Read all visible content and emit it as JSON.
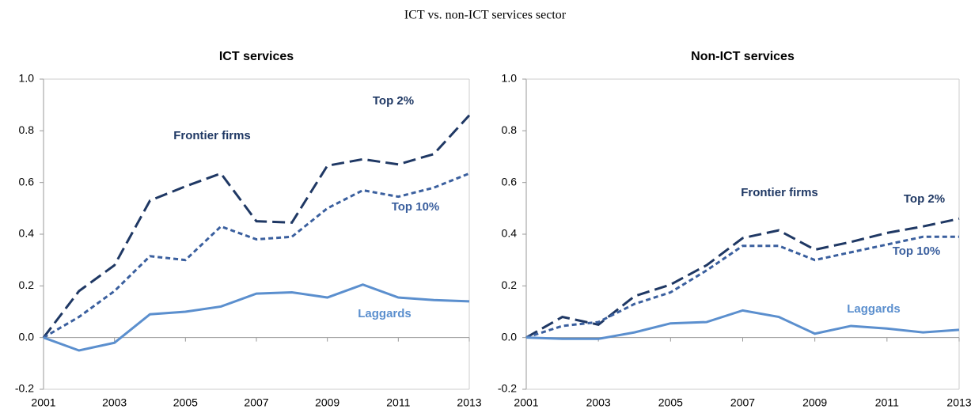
{
  "title": "ICT vs. non-ICT services sector",
  "chart_data": [
    {
      "type": "line",
      "title": "ICT services",
      "x": [
        2001,
        2002,
        2003,
        2004,
        2005,
        2006,
        2007,
        2008,
        2009,
        2010,
        2011,
        2012,
        2013
      ],
      "xlim": [
        2001,
        2013
      ],
      "xticks": [
        2001,
        2003,
        2005,
        2007,
        2009,
        2011,
        2013
      ],
      "ylim": [
        -0.2,
        1.0
      ],
      "yticks": [
        -0.2,
        {
          "value": 0,
          "label": "0.0"
        },
        0.2,
        0.4,
        0.6,
        0.8,
        {
          "value": 1,
          "label": "1.0"
        }
      ],
      "annotations": [
        "Frontier firms"
      ],
      "series": [
        {
          "name": "Top 2%",
          "color": "#1f3864",
          "dash": "long",
          "values": [
            0,
            0.18,
            0.28,
            0.53,
            0.585,
            0.635,
            0.45,
            0.445,
            0.665,
            0.69,
            0.67,
            0.71,
            0.86
          ]
        },
        {
          "name": "Top 10%",
          "color": "#3a5f9e",
          "dash": "short",
          "values": [
            0,
            0.08,
            0.18,
            0.315,
            0.3,
            0.43,
            0.38,
            0.39,
            0.5,
            0.57,
            0.545,
            0.58,
            0.635
          ]
        },
        {
          "name": "Laggards",
          "color": "#5b8fce",
          "dash": "solid",
          "values": [
            0,
            -0.05,
            -0.02,
            0.09,
            0.1,
            0.12,
            0.17,
            0.175,
            0.155,
            0.205,
            0.155,
            0.145,
            0.14
          ]
        }
      ]
    },
    {
      "type": "line",
      "title": "Non-ICT services",
      "x": [
        2001,
        2002,
        2003,
        2004,
        2005,
        2006,
        2007,
        2008,
        2009,
        2010,
        2011,
        2012,
        2013
      ],
      "xlim": [
        2001,
        2013
      ],
      "xticks": [
        2001,
        2003,
        2005,
        2007,
        2009,
        2011,
        2013
      ],
      "ylim": [
        -0.2,
        1.0
      ],
      "yticks": [
        -0.2,
        {
          "value": 0,
          "label": "0.0"
        },
        0.2,
        0.4,
        0.6,
        0.8,
        {
          "value": 1,
          "label": "1.0"
        }
      ],
      "annotations": [
        "Frontier firms"
      ],
      "series": [
        {
          "name": "Top 2%",
          "color": "#1f3864",
          "dash": "long",
          "values": [
            0,
            0.08,
            0.05,
            0.16,
            0.205,
            0.28,
            0.385,
            0.415,
            0.34,
            0.37,
            0.405,
            0.43,
            0.46
          ]
        },
        {
          "name": "Top 10%",
          "color": "#3a5f9e",
          "dash": "short",
          "values": [
            0,
            0.045,
            0.06,
            0.13,
            0.175,
            0.26,
            0.355,
            0.355,
            0.3,
            0.33,
            0.36,
            0.39,
            0.39
          ]
        },
        {
          "name": "Laggards",
          "color": "#5b8fce",
          "dash": "solid",
          "values": [
            0,
            -0.005,
            -0.005,
            0.02,
            0.055,
            0.06,
            0.105,
            0.08,
            0.015,
            0.045,
            0.035,
            0.02,
            0.03
          ]
        }
      ]
    }
  ]
}
